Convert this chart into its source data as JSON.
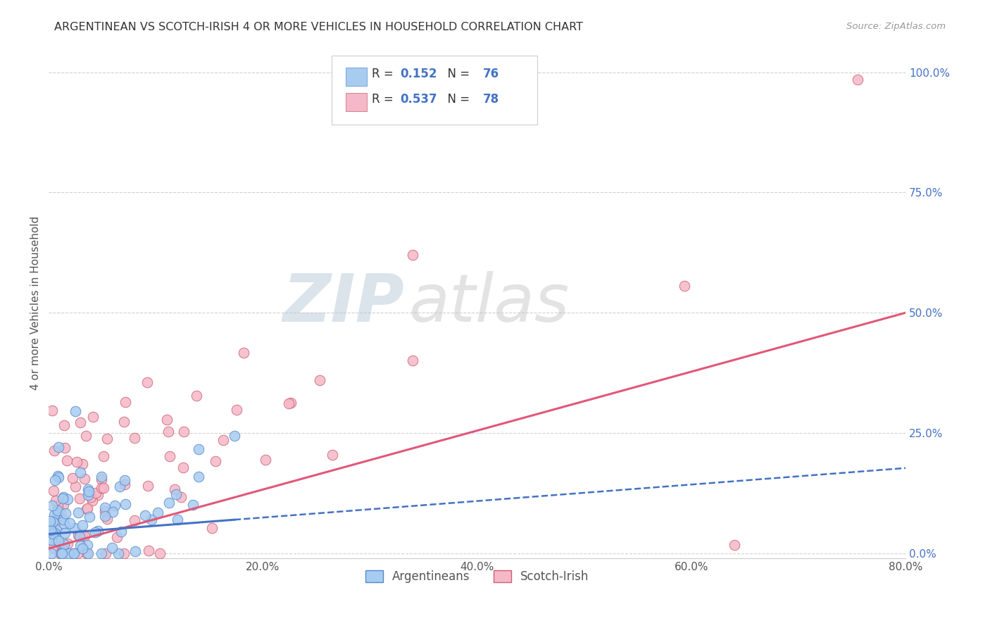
{
  "title": "ARGENTINEAN VS SCOTCH-IRISH 4 OR MORE VEHICLES IN HOUSEHOLD CORRELATION CHART",
  "source": "Source: ZipAtlas.com",
  "ylabel": "4 or more Vehicles in Household",
  "R_argentinean": 0.152,
  "N_argentinean": 76,
  "R_scotch_irish": 0.537,
  "N_scotch_irish": 78,
  "color_argentinean": "#A8CCF0",
  "color_scotch_irish": "#F5B8C8",
  "line_color_argentinean": "#4472C4",
  "line_color_scotch_irish": "#E05878",
  "edge_color_argentinean": "#5588CC",
  "edge_color_scotch_irish": "#CC6070",
  "xlim": [
    0.0,
    0.8
  ],
  "ylim": [
    -0.01,
    1.05
  ],
  "x_ticks": [
    0.0,
    0.2,
    0.4,
    0.6,
    0.8
  ],
  "x_tick_labels": [
    "0.0%",
    "20.0%",
    "40.0%",
    "60.0%",
    "80.0%"
  ],
  "y_tick_labels_right": [
    "0.0%",
    "25.0%",
    "50.0%",
    "75.0%",
    "100.0%"
  ],
  "y_ticks_right": [
    0.0,
    0.25,
    0.5,
    0.75,
    1.0
  ],
  "watermark_zip": "ZIP",
  "watermark_atlas": "atlas",
  "legend_R_color": "#4472C4",
  "legend_N_color": "#4472C4"
}
